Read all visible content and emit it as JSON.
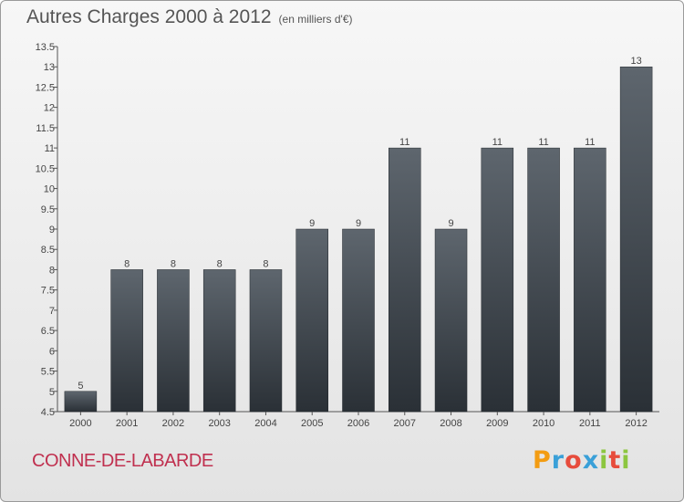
{
  "header": {
    "title": "Autres Charges 2000 à 2012",
    "subtitle": "(en milliers d'€)"
  },
  "footer": {
    "commune": "CONNE-DE-LABARDE",
    "logo_letters": [
      "P",
      "r",
      "o",
      "x",
      "i",
      "t",
      "i"
    ],
    "logo_colors": [
      "#f39c12",
      "#3aa0d8",
      "#e74c3c",
      "#3aa0d8",
      "#8cc63f",
      "#e74c3c",
      "#8cc63f"
    ]
  },
  "chart_data": {
    "type": "bar",
    "categories": [
      "2000",
      "2001",
      "2002",
      "2003",
      "2004",
      "2005",
      "2006",
      "2007",
      "2008",
      "2009",
      "2010",
      "2011",
      "2012"
    ],
    "values": [
      5,
      8,
      8,
      8,
      8,
      9,
      9,
      11,
      9,
      11,
      11,
      11,
      13
    ],
    "value_labels": [
      "5",
      "8",
      "8",
      "8",
      "8",
      "9",
      "9",
      "11",
      "9",
      "11",
      "11",
      "11",
      "13"
    ],
    "ylim": [
      4.5,
      13.5
    ],
    "yticks": [
      "4.5",
      "5",
      "5.5",
      "6",
      "6.5",
      "7",
      "7.5",
      "8",
      "8.5",
      "9",
      "9.5",
      "10",
      "10.5",
      "11",
      "11.5",
      "12",
      "12.5",
      "13",
      "13.5"
    ],
    "grid": false,
    "bar_color": "#3d434a"
  }
}
